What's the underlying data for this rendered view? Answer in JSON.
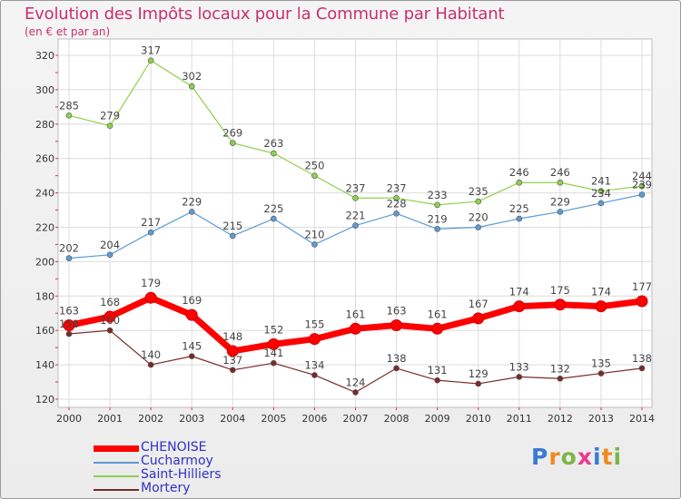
{
  "title": "Evolution des Impôts locaux pour la Commune par Habitant",
  "subtitle": "(en € et par an)",
  "logo_text": "Proxiti",
  "chart_data": {
    "type": "line",
    "title": "Evolution des Impôts locaux pour la Commune par Habitant",
    "subtitle": "(en € et par an)",
    "xlabel": "",
    "ylabel": "",
    "ylim": [
      120,
      320
    ],
    "yticks": [
      120,
      140,
      160,
      180,
      200,
      220,
      240,
      260,
      280,
      300,
      320
    ],
    "grid": true,
    "legend_position": "bottom-left",
    "categories": [
      "2000",
      "2001",
      "2002",
      "2003",
      "2004",
      "2005",
      "2006",
      "2007",
      "2008",
      "2009",
      "2010",
      "2011",
      "2012",
      "2013",
      "2014"
    ],
    "series": [
      {
        "name": "CHENOISE",
        "color": "#ff0000",
        "values": [
          163,
          168,
          179,
          169,
          148,
          152,
          155,
          161,
          163,
          161,
          167,
          174,
          175,
          174,
          177
        ]
      },
      {
        "name": "Cucharmoy",
        "color": "#5b9bd5",
        "values": [
          202,
          204,
          217,
          229,
          215,
          225,
          210,
          221,
          228,
          219,
          220,
          225,
          229,
          234,
          239
        ]
      },
      {
        "name": "Saint-Hilliers",
        "color": "#8fd04f",
        "values": [
          285,
          279,
          317,
          302,
          269,
          263,
          250,
          237,
          237,
          233,
          235,
          246,
          246,
          241,
          244
        ]
      },
      {
        "name": "Mortery",
        "color": "#7a2a2a",
        "values": [
          158,
          160,
          140,
          145,
          137,
          141,
          134,
          124,
          138,
          131,
          129,
          133,
          132,
          135,
          138
        ]
      }
    ]
  }
}
